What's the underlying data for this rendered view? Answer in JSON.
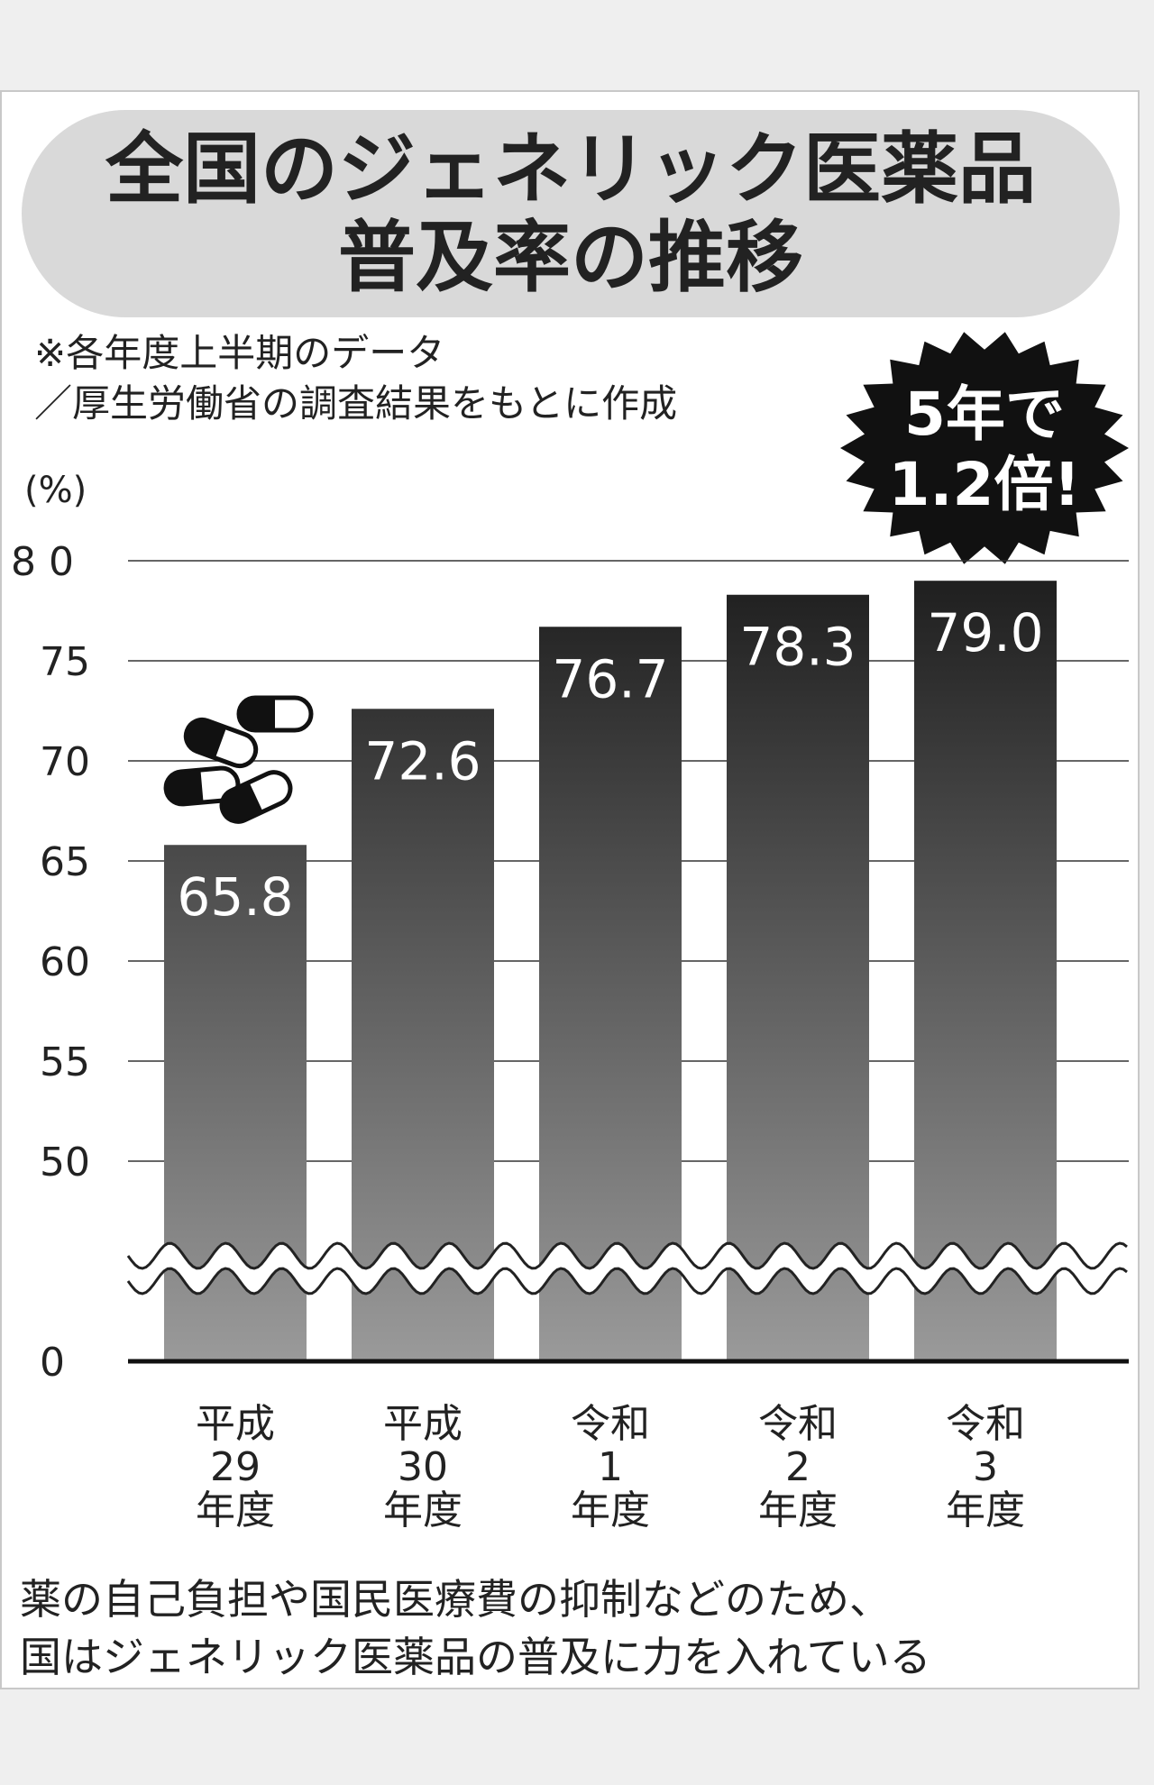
{
  "title_lines": [
    "全国のジェネリック医薬品",
    "普及率の推移"
  ],
  "notes": [
    "※各年度上半期のデータ",
    "／厚生労働省の調査結果をもとに作成"
  ],
  "callout_lines": [
    "5年で",
    "1.2倍!"
  ],
  "footer_lines": [
    "薬の自己負担や国民医療費の抑制などのため、",
    "国はジェネリック医薬品の普及に力を入れている"
  ],
  "chart_data": {
    "type": "bar",
    "unit_label": "(%)",
    "categories": [
      [
        "平成",
        "29",
        "年度"
      ],
      [
        "平成",
        "30",
        "年度"
      ],
      [
        "令和",
        "1",
        "年度"
      ],
      [
        "令和",
        "2",
        "年度"
      ],
      [
        "令和",
        "3",
        "年度"
      ]
    ],
    "values": [
      65.8,
      72.6,
      76.7,
      78.3,
      79.0
    ],
    "value_labels": [
      "65.8",
      "72.6",
      "76.7",
      "78.3",
      "79.0"
    ],
    "y_ticks": [
      "80",
      "75",
      "70",
      "65",
      "60",
      "55",
      "50",
      "0"
    ],
    "ylim": [
      0,
      80
    ],
    "axis_break": "between 0 and 50",
    "grid": true,
    "bar_gradient": [
      "#1c1c1c",
      "#9a9a9a"
    ],
    "decoration": "capsule-pills-icon"
  }
}
